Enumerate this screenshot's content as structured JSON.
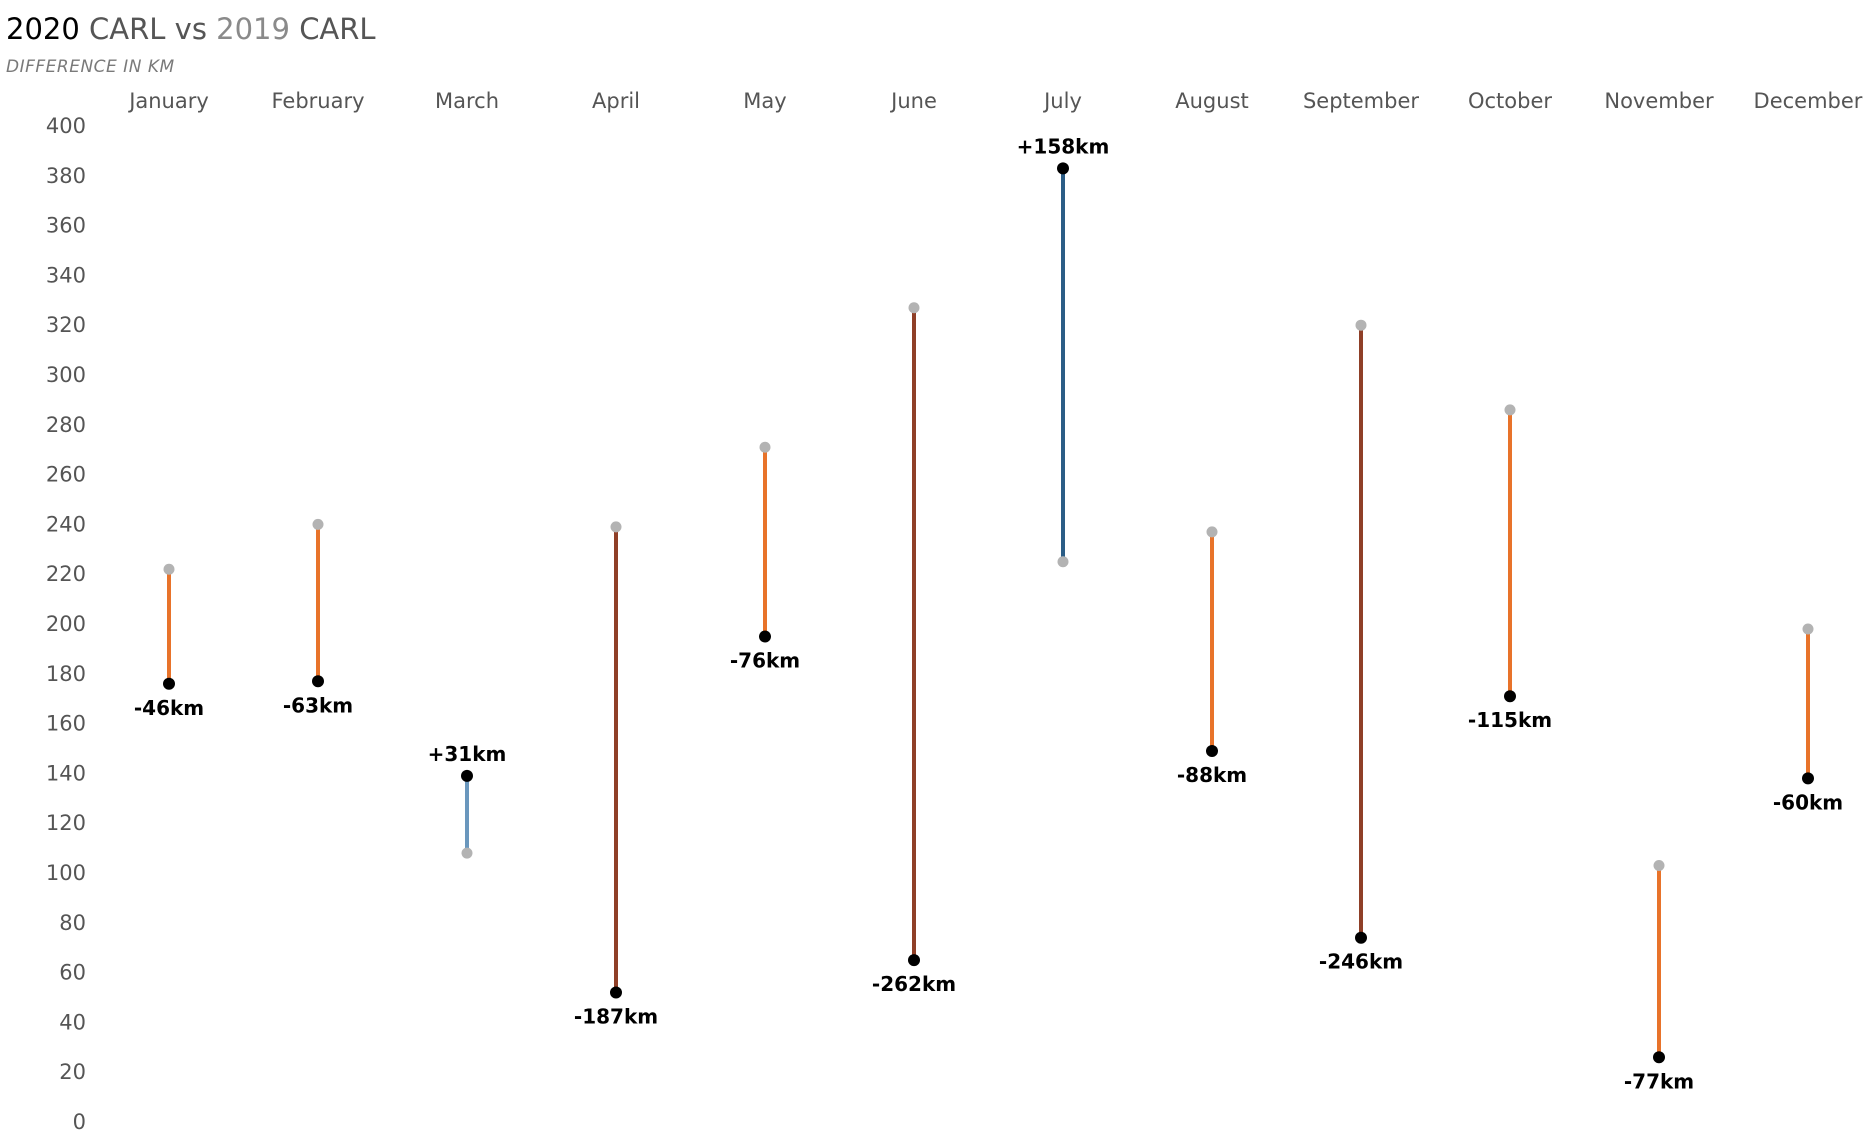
{
  "title": {
    "year_a": "2020",
    "carl_a": "CARL",
    "vs": "vs",
    "year_b": "2019",
    "carl_b": "CARL"
  },
  "subtitle": "DIFFERENCE IN KM",
  "colors": {
    "prior_point": "#b3b3b3",
    "current_point": "#000000",
    "small_decrease": "#e8732a",
    "large_decrease": "#8f3f27",
    "small_increase": "#6a97bd",
    "large_increase": "#2b5d86"
  },
  "chart_data": {
    "type": "dumbbell",
    "title": "2020 CARL vs 2019 CARL",
    "subtitle": "DIFFERENCE IN KM",
    "ylim": [
      0,
      400
    ],
    "yticks": [
      0,
      20,
      40,
      60,
      80,
      100,
      120,
      140,
      160,
      180,
      200,
      220,
      240,
      260,
      280,
      300,
      320,
      340,
      360,
      380,
      400
    ],
    "grid": false,
    "categories": [
      "January",
      "February",
      "March",
      "April",
      "May",
      "June",
      "July",
      "August",
      "September",
      "October",
      "November",
      "December"
    ],
    "series": [
      {
        "name": "2019",
        "values": [
          222,
          240,
          108,
          239,
          271,
          327,
          225,
          237,
          320,
          286,
          103,
          198
        ]
      },
      {
        "name": "2020",
        "values": [
          176,
          177,
          139,
          52,
          195,
          65,
          383,
          149,
          74,
          171,
          26,
          138
        ]
      }
    ],
    "difference_labels": [
      "-46km",
      "-63km",
      "+31km",
      "-187km",
      "-76km",
      "-262km",
      "+158km",
      "-88km",
      "-246km",
      "-115km",
      "-77km",
      "-60km"
    ]
  }
}
